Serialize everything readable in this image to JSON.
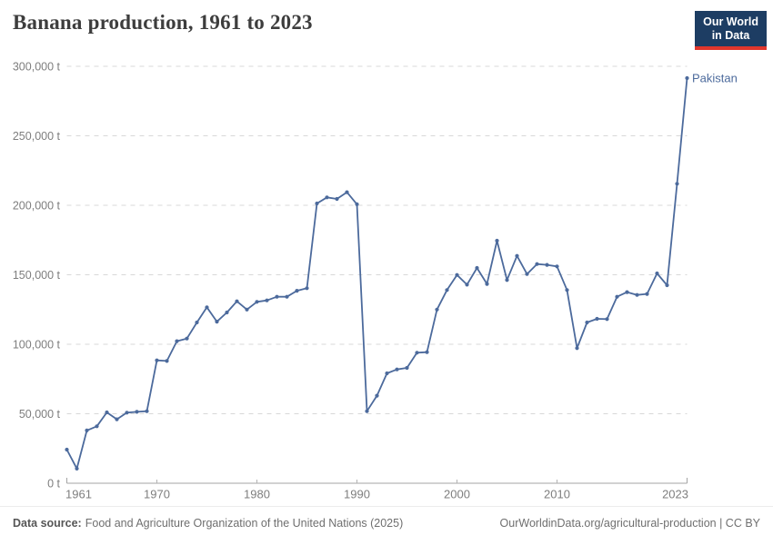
{
  "header": {
    "title": "Banana production, 1961 to 2023",
    "logo": {
      "line1": "Our World",
      "line2": "in Data"
    }
  },
  "chart_data": {
    "type": "line",
    "title": "Banana production, 1961 to 2023",
    "xlabel": "",
    "ylabel": "",
    "unit": "t",
    "grid": "horizontal-dashed",
    "legend_position": "end-of-line-label",
    "xlim": [
      1961,
      2023
    ],
    "ylim": [
      0,
      300000
    ],
    "x_ticks": [
      1961,
      1970,
      1980,
      1990,
      2000,
      2010,
      2023
    ],
    "x_tick_labels": [
      "1961",
      "1970",
      "1980",
      "1990",
      "2000",
      "2010",
      "2023"
    ],
    "y_ticks": [
      0,
      50000,
      100000,
      150000,
      200000,
      250000,
      300000
    ],
    "y_tick_labels": [
      "0 t",
      "50,000 t",
      "100,000 t",
      "150,000 t",
      "200,000 t",
      "250,000 t",
      "300,000 t"
    ],
    "colors": {
      "line": "#4c6a9c",
      "grid": "#d8d8d8",
      "axis": "#a3a3a3",
      "tick_text": "#7e7e7e"
    },
    "series": [
      {
        "name": "Pakistan",
        "color": "#4c6a9c",
        "x_start": 1961,
        "values": [
          24200,
          10500,
          38000,
          41000,
          51000,
          46000,
          50800,
          51400,
          51800,
          88400,
          88000,
          102200,
          104100,
          115700,
          126600,
          116300,
          122900,
          130900,
          125000,
          130500,
          131600,
          134200,
          134200,
          138500,
          140300,
          201300,
          205700,
          204600,
          209400,
          200700,
          51800,
          63000,
          79100,
          81900,
          83000,
          93900,
          94300,
          125000,
          139000,
          149900,
          142900,
          154900,
          143400,
          174500,
          146200,
          163600,
          150500,
          157700,
          157100,
          156000,
          139000,
          97200,
          115700,
          118300,
          118100,
          134200,
          137500,
          135500,
          136200,
          151000,
          142500,
          215500,
          291500
        ]
      }
    ]
  },
  "footer": {
    "source_label": "Data source:",
    "source_text": "Food and Agriculture Organization of the United Nations (2025)",
    "credit": "OurWorldinData.org/agricultural-production | CC BY"
  }
}
